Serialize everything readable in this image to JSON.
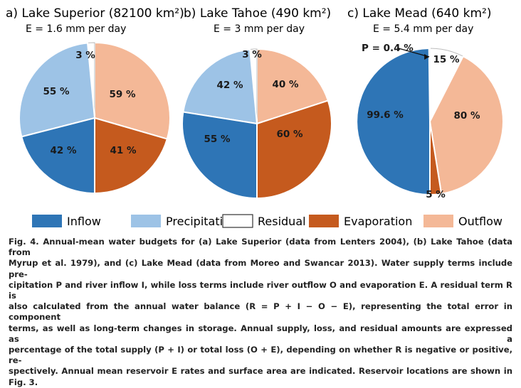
{
  "colors": {
    "inflow": "#2e75b6",
    "precipitation": "#9dc3e6",
    "residual": "#ffffff",
    "evaporation": "#c55a1e",
    "outflow": "#f4b897",
    "stroke": "#ffffff"
  },
  "chart_data": [
    {
      "type": "pie",
      "panel": "a)",
      "title": "Lake Superior (82100 km²)",
      "subtitle": "E = 1.6 mm per day",
      "slices": [
        {
          "category": "Residual",
          "value": 3,
          "label": "3 %"
        },
        {
          "category": "Outflow",
          "value": 59,
          "label": "59 %"
        },
        {
          "category": "Evaporation",
          "value": 41,
          "label": "41 %"
        },
        {
          "category": "Inflow",
          "value": 42,
          "label": "42 %"
        },
        {
          "category": "Precipitation",
          "value": 55,
          "label": "55 %"
        }
      ]
    },
    {
      "type": "pie",
      "panel": "b)",
      "title": "Lake Tahoe (490 km²)",
      "subtitle": "E = 3 mm per day",
      "slices": [
        {
          "category": "Residual",
          "value": 3,
          "label": "3 %"
        },
        {
          "category": "Outflow",
          "value": 40,
          "label": "40 %"
        },
        {
          "category": "Evaporation",
          "value": 60,
          "label": "60 %"
        },
        {
          "category": "Inflow",
          "value": 55,
          "label": "55 %"
        },
        {
          "category": "Precipitation",
          "value": 42,
          "label": "42 %"
        }
      ]
    },
    {
      "type": "pie",
      "panel": "c)",
      "title": "Lake Mead (640 km²)",
      "subtitle": "E = 5.4 mm per day",
      "annotation": "P = 0.4 %",
      "slices": [
        {
          "category": "Residual",
          "value": 15,
          "label": "15 %"
        },
        {
          "category": "Outflow",
          "value": 80,
          "label": "80 %"
        },
        {
          "category": "Evaporation",
          "value": 5,
          "label": "5 %"
        },
        {
          "category": "Inflow",
          "value": 99.6,
          "label": "99.6 %"
        },
        {
          "category": "Precipitation",
          "value": 0.4,
          "label": ""
        }
      ]
    }
  ],
  "legend": [
    "Inflow",
    "Precipitation",
    "Residual",
    "Evaporation",
    "Outflow"
  ],
  "caption_lines": [
    "Fig. 4. Annual-mean water budgets for (a) Lake Superior (data from Lenters 2004), (b) Lake Tahoe (data from",
    "Myrup et al. 1979), and (c) Lake Mead (data from Moreo and Swancar 2013). Water supply terms include pre-",
    "cipitation P and river inflow I, while loss terms include river outflow O and evaporation E. A residual term R is",
    "also calculated from the annual water balance (R = P + I − O − E), representing the total error in component",
    "terms, as well as long-term changes in storage. Annual supply, loss, and residual amounts are expressed as a",
    "percentage of the total supply (P + I) or total loss (O + E), depending on whether R is negative or positive, re-",
    "spectively. Annual mean reservoir E rates and surface area are indicated. Reservoir locations are shown in Fig. 3."
  ]
}
